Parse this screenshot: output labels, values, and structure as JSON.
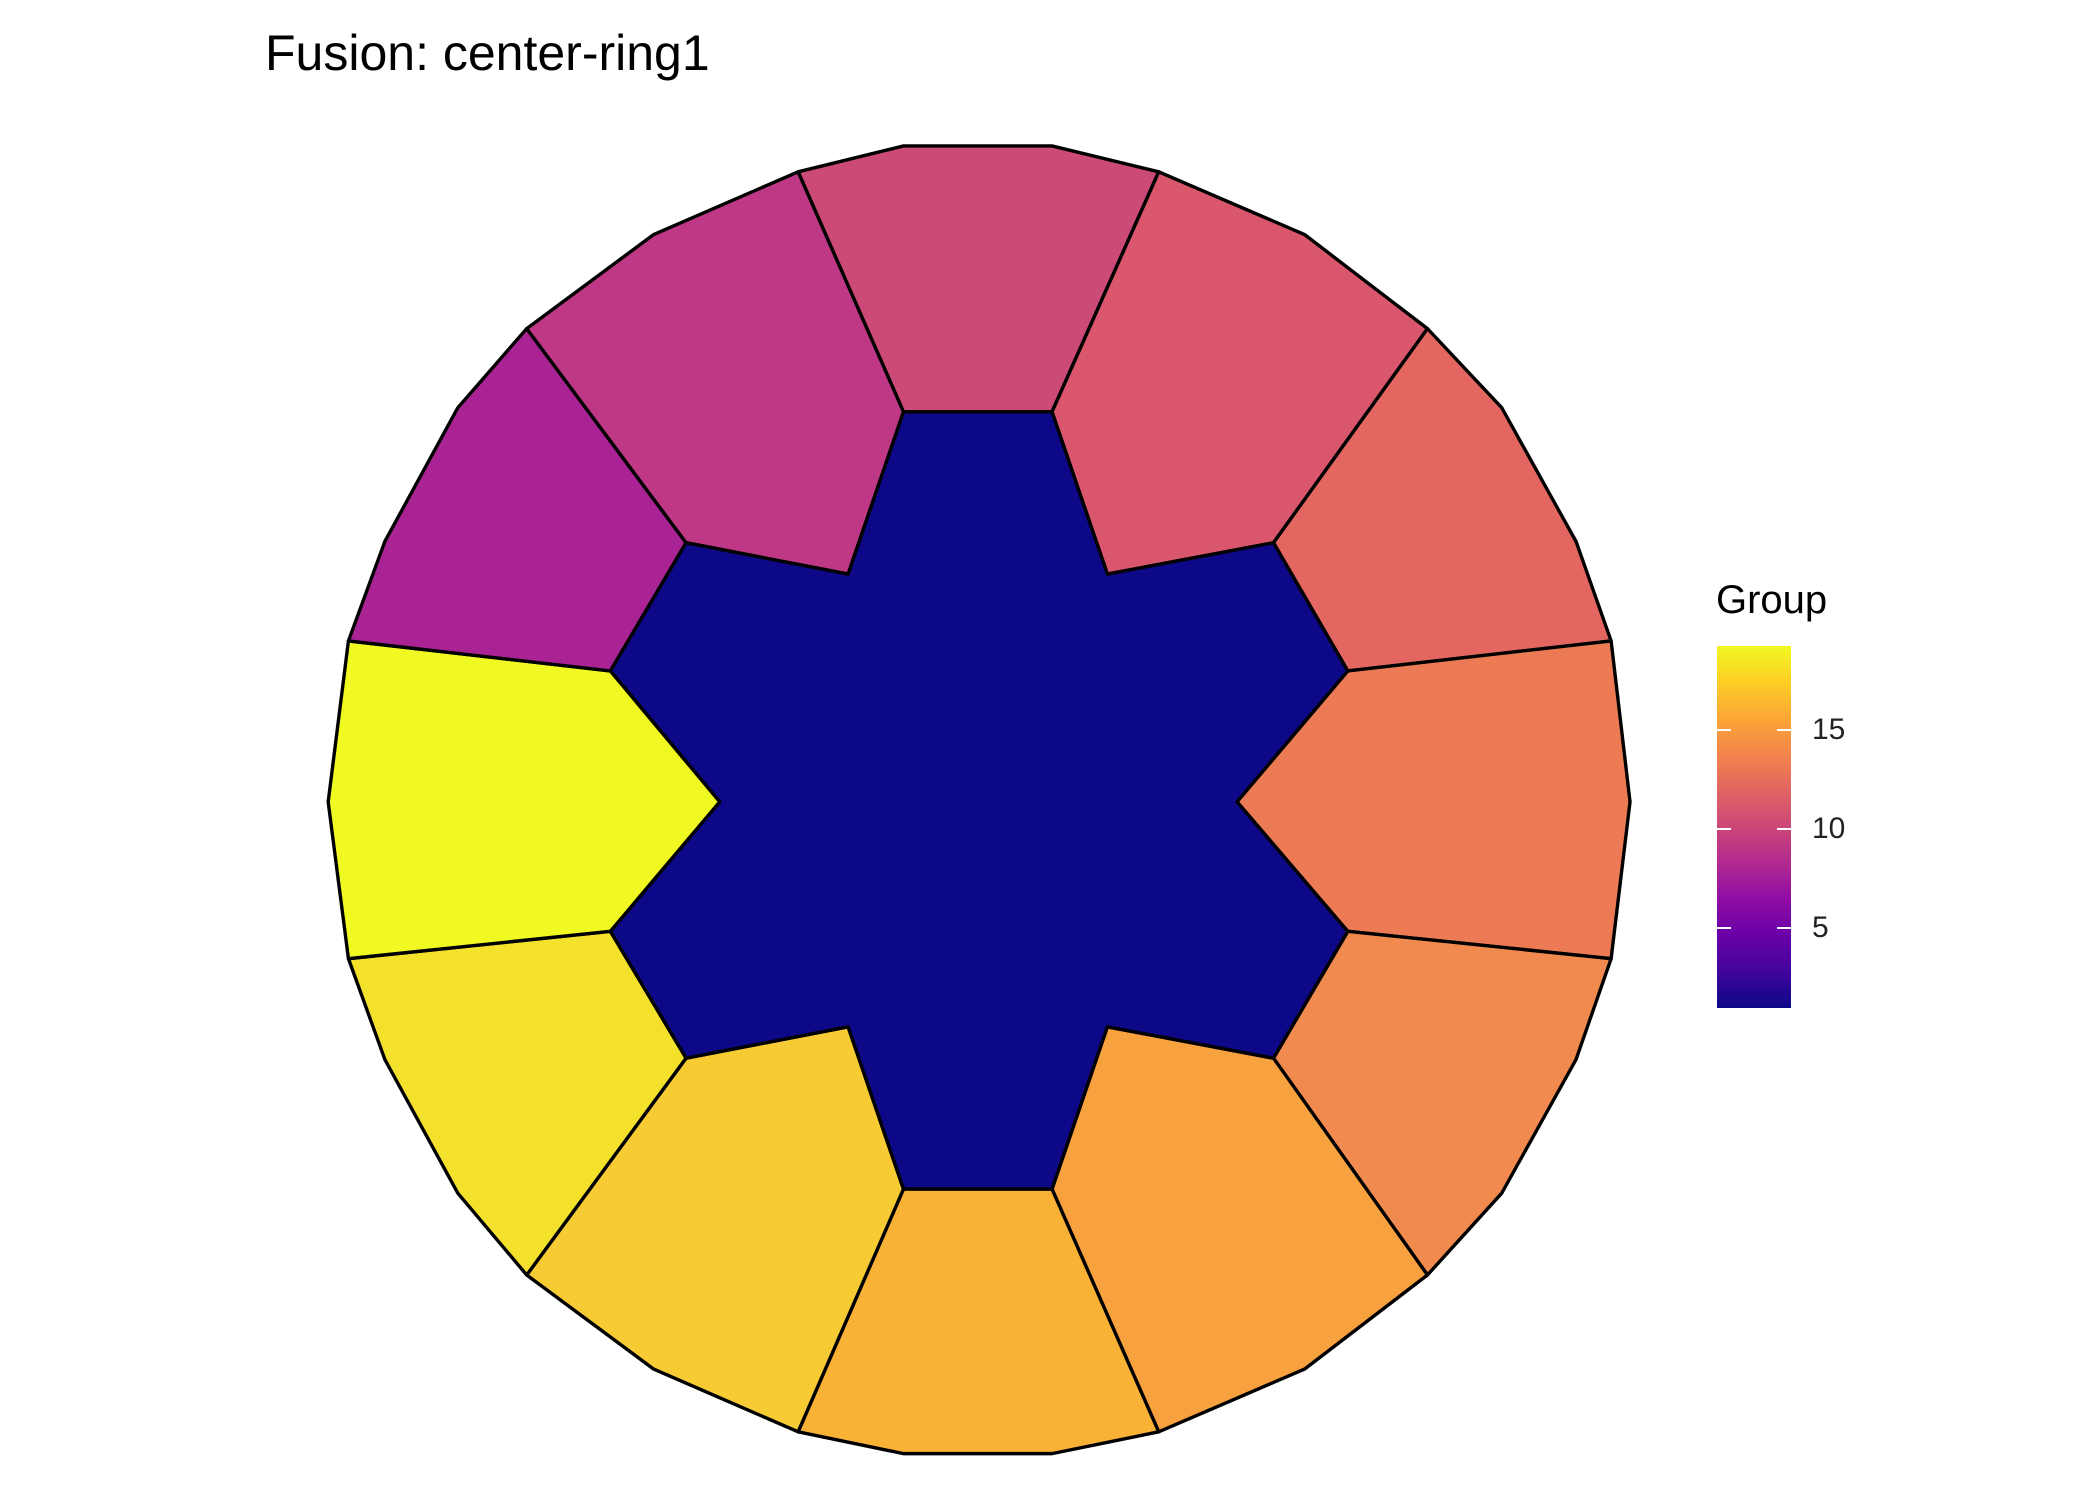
{
  "title": "Fusion: center-ring1",
  "legend": {
    "title": "Group",
    "ticks": [
      "5",
      "10",
      "15"
    ],
    "range": [
      1,
      19
    ],
    "palette": "plasma"
  },
  "pieces": [
    {
      "name": "center",
      "group": 1,
      "color": "#0D0887"
    },
    {
      "name": "ring-top",
      "group": 10,
      "color": "#CC4A78"
    },
    {
      "name": "ring-top-right",
      "group": 11,
      "color": "#D9566C"
    },
    {
      "name": "ring-right-upper",
      "group": 12,
      "color": "#E36760"
    },
    {
      "name": "ring-right",
      "group": 13,
      "color": "#EC7B55"
    },
    {
      "name": "ring-right-lower",
      "group": 14,
      "color": "#F08A4F"
    },
    {
      "name": "ring-bottom-right",
      "group": 15,
      "color": "#F8A13F"
    },
    {
      "name": "ring-bottom",
      "group": 16,
      "color": "#FAB236"
    },
    {
      "name": "ring-bottom-left",
      "group": 17,
      "color": "#F7CB33"
    },
    {
      "name": "ring-lower-left",
      "group": 18,
      "color": "#F4E12B"
    },
    {
      "name": "ring-left",
      "group": 19,
      "color": "#F0F921"
    },
    {
      "name": "ring-upper-left",
      "group": 8,
      "color": "#AA2395"
    },
    {
      "name": "ring-top-left",
      "group": 9,
      "color": "#BE3885"
    }
  ]
}
